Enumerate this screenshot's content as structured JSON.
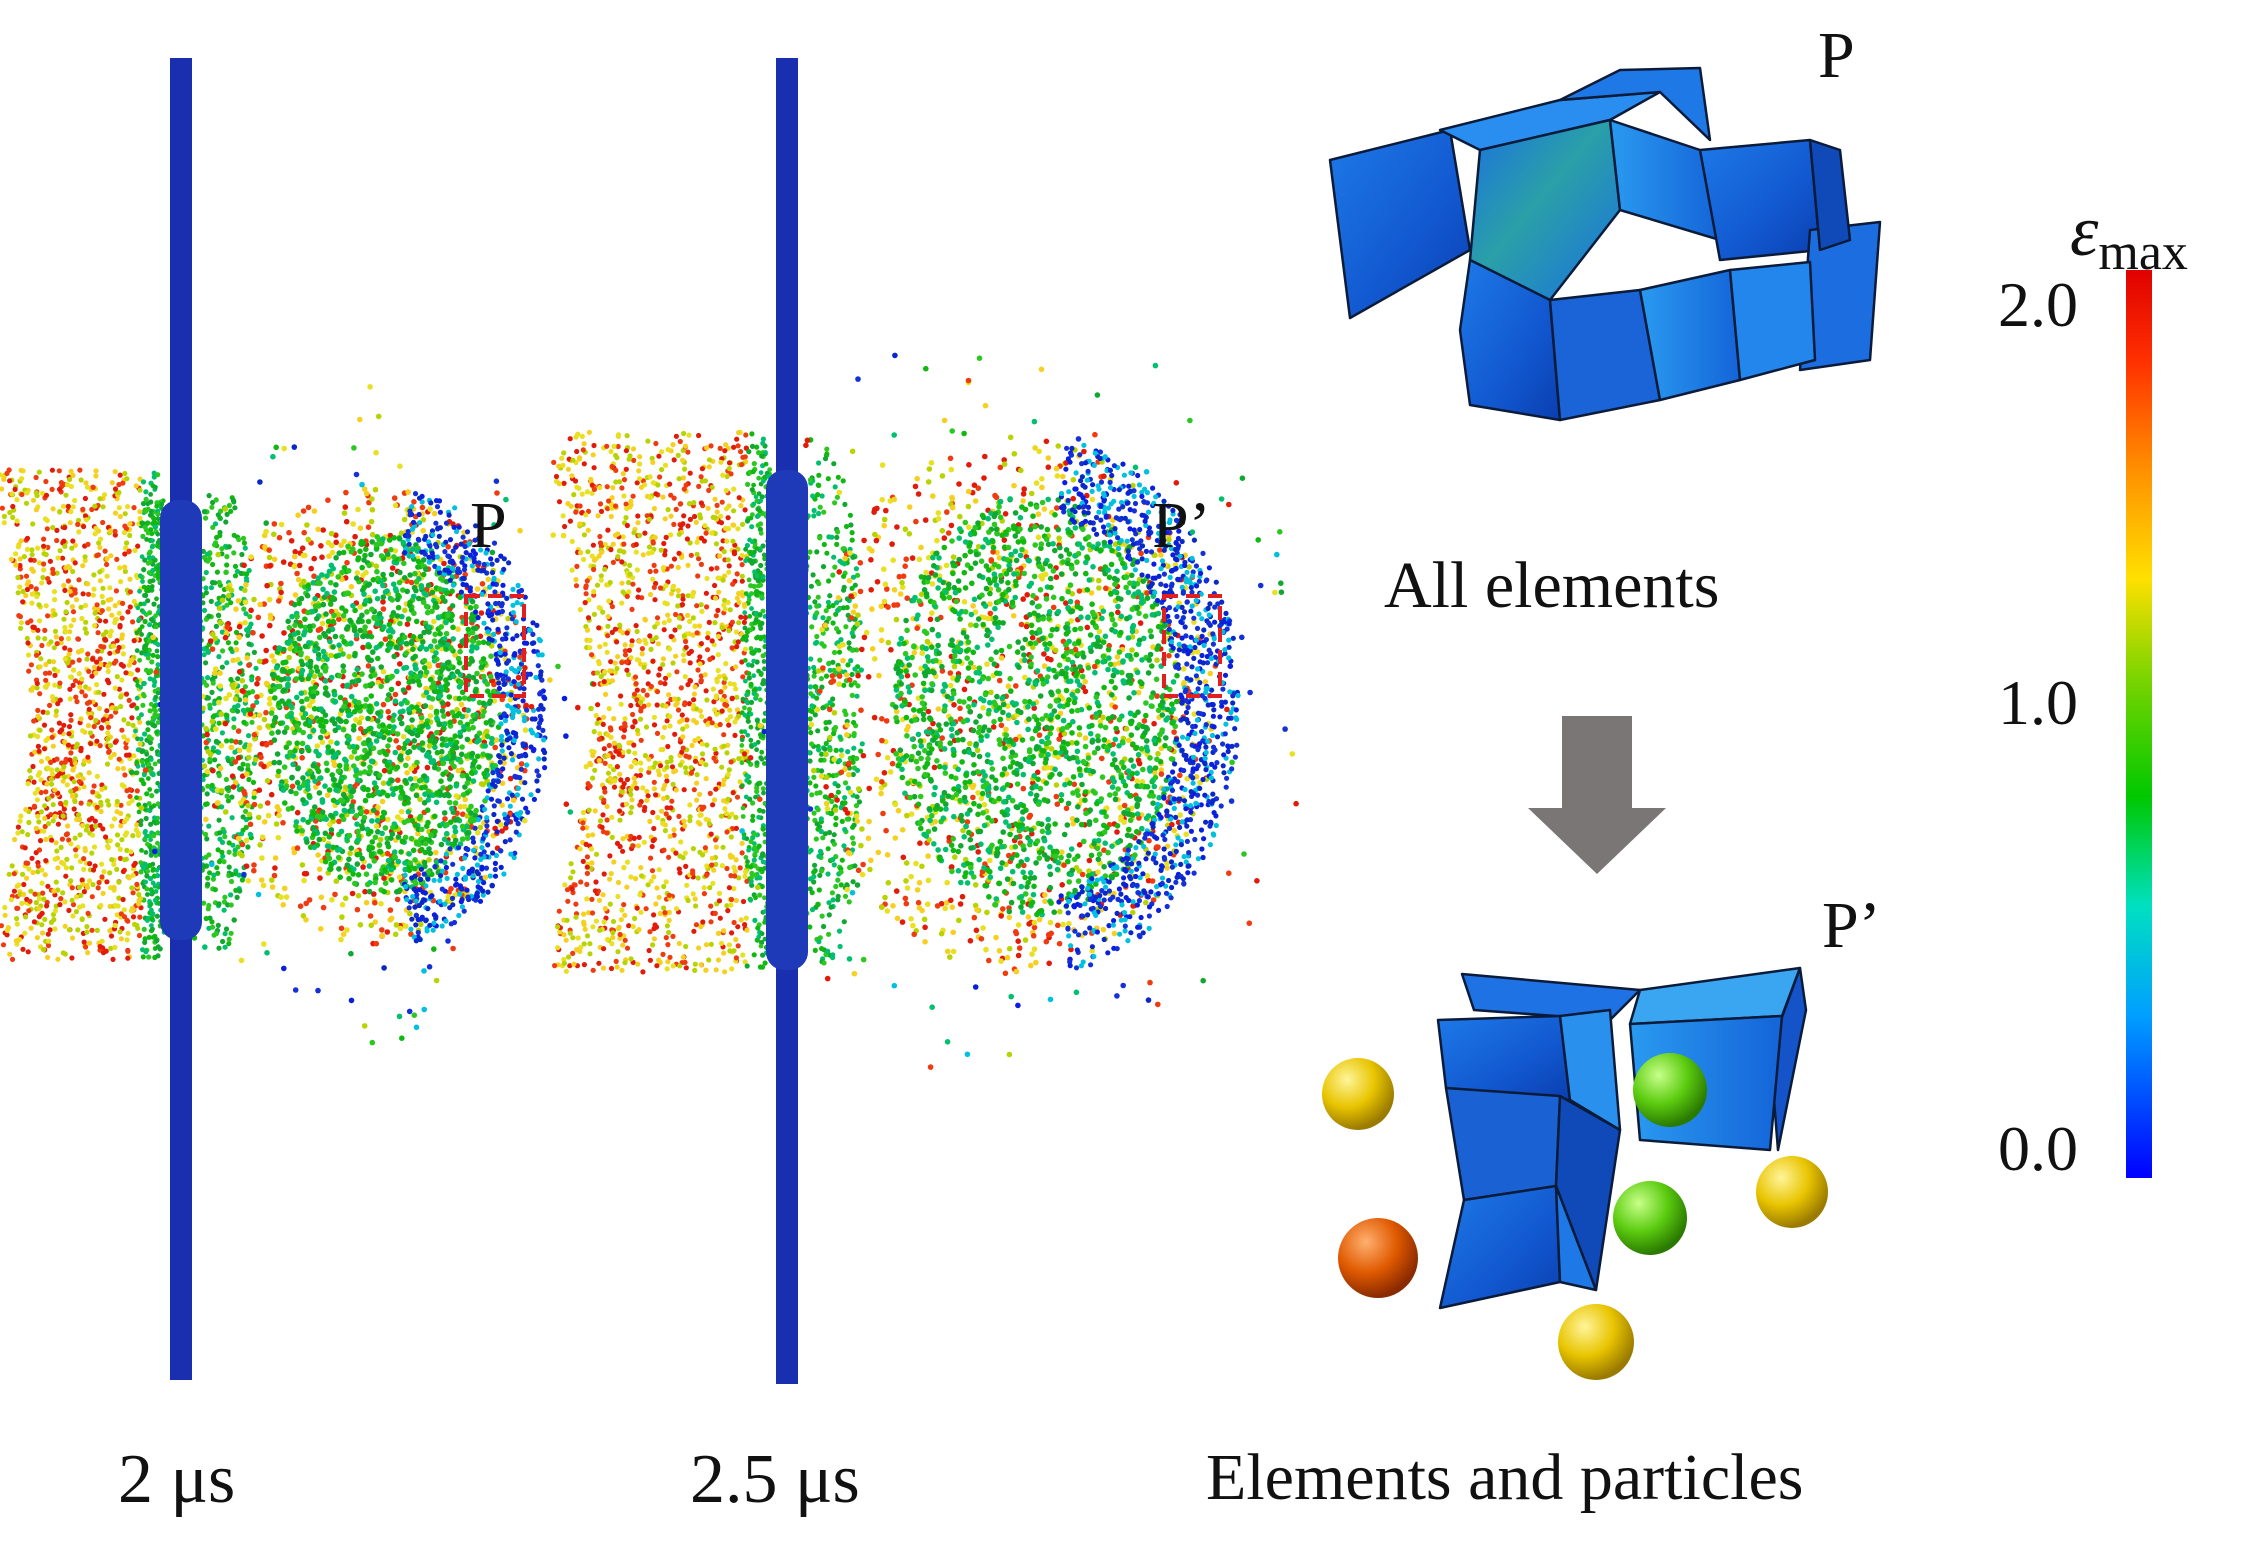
{
  "panels": {
    "t1": {
      "time_label": "2 μs",
      "point_label": "P"
    },
    "t2": {
      "time_label": "2.5 μs",
      "point_label": "P’"
    }
  },
  "right": {
    "top_point_label": "P",
    "all_elements_caption": "All elements",
    "bottom_point_label": "P’",
    "elements_particles_caption": "Elements and particles"
  },
  "colorbar": {
    "symbol": "ε",
    "subscript": "max",
    "ticks": [
      "2.0",
      "1.0",
      "0.0"
    ],
    "min": 0.0,
    "max": 2.0,
    "colors": [
      "#0000ff",
      "#00a0ff",
      "#00e0c0",
      "#00c800",
      "#b4dc00",
      "#ffe000",
      "#ff9000",
      "#ff3000",
      "#e00000"
    ]
  },
  "colors": {
    "plate": "#1a2fb0",
    "highlight_box": "#e02020",
    "arrow": "#7a7675"
  },
  "icons": [
    "down-arrow-icon"
  ]
}
